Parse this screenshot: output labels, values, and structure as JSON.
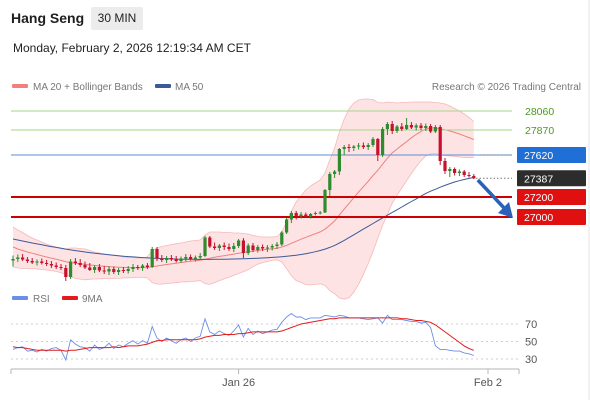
{
  "header": {
    "title": "Hang Seng",
    "timeframe": "30 MIN",
    "datetime": "Monday, February 2, 2026 12:19:34 AM CET"
  },
  "chart_data": {
    "type": "candlestick",
    "legend": [
      {
        "label": "MA 20 + Bollinger Bands",
        "color": "#f08080"
      },
      {
        "label": "MA 50",
        "color": "#3c5a9a"
      }
    ],
    "rsi_legend": [
      {
        "label": "RSI",
        "color": "#6b8ee8"
      },
      {
        "label": "9MA",
        "color": "#e21b1b"
      }
    ],
    "credit": "Research © 2026 Trading Central",
    "levels": [
      {
        "value": 28060,
        "label": "28060",
        "kind": "resistance",
        "color": "#4a9a1e",
        "line_color": "#a6d58a"
      },
      {
        "value": 27870,
        "label": "27870",
        "kind": "resistance",
        "color": "#4a9a1e",
        "line_color": "#a6d58a"
      },
      {
        "value": 27620,
        "label": "27620",
        "kind": "pivot",
        "color": "#1f6fd6",
        "line_color": "#5b8ed6"
      },
      {
        "value": 27387,
        "label": "27387",
        "kind": "last",
        "color": "#2c2c2c",
        "line_color": "#777777"
      },
      {
        "value": 27200,
        "label": "27200",
        "kind": "support",
        "color": "#e01010",
        "line_color": "#cc0000"
      },
      {
        "value": 27000,
        "label": "27000",
        "kind": "support",
        "color": "#e01010",
        "line_color": "#cc0000"
      }
    ],
    "price_range": [
      26300,
      28200
    ],
    "rsi_range": [
      20,
      80
    ],
    "rsi_ticks": [
      {
        "value": 70,
        "label": "70"
      },
      {
        "value": 50,
        "label": "50"
      },
      {
        "value": 30,
        "label": "30"
      }
    ],
    "x_labels": [
      {
        "index": 47,
        "label": "Jan 26"
      },
      {
        "index": 96,
        "label": "Feb 2"
      }
    ],
    "candles": [
      {
        "o": 26565,
        "h": 26615,
        "l": 26505,
        "c": 26580
      },
      {
        "o": 26580,
        "h": 26625,
        "l": 26550,
        "c": 26595
      },
      {
        "o": 26595,
        "h": 26630,
        "l": 26560,
        "c": 26575
      },
      {
        "o": 26575,
        "h": 26600,
        "l": 26540,
        "c": 26560
      },
      {
        "o": 26560,
        "h": 26590,
        "l": 26530,
        "c": 26545
      },
      {
        "o": 26545,
        "h": 26575,
        "l": 26515,
        "c": 26555
      },
      {
        "o": 26555,
        "h": 26585,
        "l": 26525,
        "c": 26540
      },
      {
        "o": 26540,
        "h": 26570,
        "l": 26510,
        "c": 26530
      },
      {
        "o": 26530,
        "h": 26560,
        "l": 26490,
        "c": 26515
      },
      {
        "o": 26515,
        "h": 26545,
        "l": 26480,
        "c": 26500
      },
      {
        "o": 26500,
        "h": 26530,
        "l": 26470,
        "c": 26490
      },
      {
        "o": 26490,
        "h": 26520,
        "l": 26360,
        "c": 26400
      },
      {
        "o": 26400,
        "h": 26580,
        "l": 26380,
        "c": 26555
      },
      {
        "o": 26555,
        "h": 26590,
        "l": 26520,
        "c": 26540
      },
      {
        "o": 26540,
        "h": 26580,
        "l": 26500,
        "c": 26520
      },
      {
        "o": 26520,
        "h": 26555,
        "l": 26480,
        "c": 26495
      },
      {
        "o": 26495,
        "h": 26540,
        "l": 26460,
        "c": 26470
      },
      {
        "o": 26470,
        "h": 26520,
        "l": 26440,
        "c": 26500
      },
      {
        "o": 26500,
        "h": 26530,
        "l": 26450,
        "c": 26465
      },
      {
        "o": 26465,
        "h": 26510,
        "l": 26430,
        "c": 26455
      },
      {
        "o": 26455,
        "h": 26510,
        "l": 26420,
        "c": 26480
      },
      {
        "o": 26480,
        "h": 26505,
        "l": 26430,
        "c": 26450
      },
      {
        "o": 26450,
        "h": 26490,
        "l": 26420,
        "c": 26470
      },
      {
        "o": 26470,
        "h": 26500,
        "l": 26440,
        "c": 26460
      },
      {
        "o": 26460,
        "h": 26510,
        "l": 26435,
        "c": 26480
      },
      {
        "o": 26480,
        "h": 26530,
        "l": 26450,
        "c": 26500
      },
      {
        "o": 26500,
        "h": 26520,
        "l": 26470,
        "c": 26490
      },
      {
        "o": 26490,
        "h": 26530,
        "l": 26460,
        "c": 26515
      },
      {
        "o": 26515,
        "h": 26540,
        "l": 26480,
        "c": 26500
      },
      {
        "o": 26500,
        "h": 26700,
        "l": 26490,
        "c": 26680
      },
      {
        "o": 26680,
        "h": 26700,
        "l": 26560,
        "c": 26585
      },
      {
        "o": 26585,
        "h": 26620,
        "l": 26550,
        "c": 26570
      },
      {
        "o": 26570,
        "h": 26610,
        "l": 26540,
        "c": 26590
      },
      {
        "o": 26590,
        "h": 26620,
        "l": 26560,
        "c": 26575
      },
      {
        "o": 26575,
        "h": 26610,
        "l": 26545,
        "c": 26560
      },
      {
        "o": 26560,
        "h": 26605,
        "l": 26540,
        "c": 26585
      },
      {
        "o": 26585,
        "h": 26630,
        "l": 26555,
        "c": 26600
      },
      {
        "o": 26600,
        "h": 26625,
        "l": 26565,
        "c": 26580
      },
      {
        "o": 26580,
        "h": 26615,
        "l": 26555,
        "c": 26595
      },
      {
        "o": 26595,
        "h": 26640,
        "l": 26570,
        "c": 26610
      },
      {
        "o": 26610,
        "h": 26810,
        "l": 26600,
        "c": 26795
      },
      {
        "o": 26795,
        "h": 26810,
        "l": 26690,
        "c": 26705
      },
      {
        "o": 26705,
        "h": 26745,
        "l": 26670,
        "c": 26690
      },
      {
        "o": 26690,
        "h": 26730,
        "l": 26660,
        "c": 26715
      },
      {
        "o": 26715,
        "h": 26745,
        "l": 26670,
        "c": 26700
      },
      {
        "o": 26700,
        "h": 26735,
        "l": 26660,
        "c": 26680
      },
      {
        "o": 26680,
        "h": 26740,
        "l": 26650,
        "c": 26710
      },
      {
        "o": 26710,
        "h": 26780,
        "l": 26690,
        "c": 26765
      },
      {
        "o": 26765,
        "h": 26790,
        "l": 26590,
        "c": 26640
      },
      {
        "o": 26640,
        "h": 26735,
        "l": 26620,
        "c": 26715
      },
      {
        "o": 26715,
        "h": 26740,
        "l": 26650,
        "c": 26670
      },
      {
        "o": 26670,
        "h": 26720,
        "l": 26645,
        "c": 26700
      },
      {
        "o": 26700,
        "h": 26725,
        "l": 26660,
        "c": 26685
      },
      {
        "o": 26685,
        "h": 26720,
        "l": 26650,
        "c": 26695
      },
      {
        "o": 26695,
        "h": 26730,
        "l": 26665,
        "c": 26710
      },
      {
        "o": 26710,
        "h": 26750,
        "l": 26680,
        "c": 26725
      },
      {
        "o": 26725,
        "h": 26860,
        "l": 26710,
        "c": 26845
      },
      {
        "o": 26845,
        "h": 26990,
        "l": 26830,
        "c": 26975
      },
      {
        "o": 26975,
        "h": 27060,
        "l": 26940,
        "c": 27040
      },
      {
        "o": 27040,
        "h": 27060,
        "l": 26975,
        "c": 27010
      },
      {
        "o": 27010,
        "h": 27050,
        "l": 26985,
        "c": 27025
      },
      {
        "o": 27025,
        "h": 27045,
        "l": 26990,
        "c": 27005
      },
      {
        "o": 27005,
        "h": 27040,
        "l": 26985,
        "c": 27030
      },
      {
        "o": 27030,
        "h": 27055,
        "l": 27015,
        "c": 27040
      },
      {
        "o": 27040,
        "h": 27060,
        "l": 27025,
        "c": 27045
      },
      {
        "o": 27045,
        "h": 27280,
        "l": 27040,
        "c": 27270
      },
      {
        "o": 27270,
        "h": 27450,
        "l": 27210,
        "c": 27430
      },
      {
        "o": 27430,
        "h": 27470,
        "l": 27390,
        "c": 27455
      },
      {
        "o": 27455,
        "h": 27690,
        "l": 27420,
        "c": 27680
      },
      {
        "o": 27680,
        "h": 27720,
        "l": 27620,
        "c": 27700
      },
      {
        "o": 27700,
        "h": 27730,
        "l": 27650,
        "c": 27690
      },
      {
        "o": 27690,
        "h": 27720,
        "l": 27660,
        "c": 27705
      },
      {
        "o": 27705,
        "h": 27740,
        "l": 27675,
        "c": 27715
      },
      {
        "o": 27715,
        "h": 27745,
        "l": 27680,
        "c": 27700
      },
      {
        "o": 27700,
        "h": 27740,
        "l": 27670,
        "c": 27720
      },
      {
        "o": 27720,
        "h": 27800,
        "l": 27700,
        "c": 27780
      },
      {
        "o": 27780,
        "h": 27790,
        "l": 27560,
        "c": 27620
      },
      {
        "o": 27620,
        "h": 27900,
        "l": 27600,
        "c": 27880
      },
      {
        "o": 27880,
        "h": 27950,
        "l": 27820,
        "c": 27930
      },
      {
        "o": 27930,
        "h": 27960,
        "l": 27830,
        "c": 27860
      },
      {
        "o": 27860,
        "h": 27920,
        "l": 27840,
        "c": 27905
      },
      {
        "o": 27905,
        "h": 27940,
        "l": 27860,
        "c": 27880
      },
      {
        "o": 27880,
        "h": 27990,
        "l": 27870,
        "c": 27920
      },
      {
        "o": 27920,
        "h": 27950,
        "l": 27880,
        "c": 27895
      },
      {
        "o": 27895,
        "h": 27935,
        "l": 27865,
        "c": 27915
      },
      {
        "o": 27915,
        "h": 27940,
        "l": 27870,
        "c": 27890
      },
      {
        "o": 27890,
        "h": 27935,
        "l": 27860,
        "c": 27910
      },
      {
        "o": 27910,
        "h": 27930,
        "l": 27840,
        "c": 27855
      },
      {
        "o": 27855,
        "h": 27920,
        "l": 27840,
        "c": 27900
      },
      {
        "o": 27900,
        "h": 27920,
        "l": 27520,
        "c": 27560
      },
      {
        "o": 27560,
        "h": 27590,
        "l": 27430,
        "c": 27460
      },
      {
        "o": 27460,
        "h": 27500,
        "l": 27400,
        "c": 27480
      },
      {
        "o": 27480,
        "h": 27495,
        "l": 27415,
        "c": 27440
      },
      {
        "o": 27440,
        "h": 27475,
        "l": 27410,
        "c": 27455
      },
      {
        "o": 27455,
        "h": 27470,
        "l": 27400,
        "c": 27420
      },
      {
        "o": 27420,
        "h": 27450,
        "l": 27395,
        "c": 27410
      },
      {
        "o": 27410,
        "h": 27430,
        "l": 27380,
        "c": 27387
      }
    ],
    "ma20": [
      26700,
      26680,
      26665,
      26650,
      26638,
      26625,
      26612,
      26600,
      26588,
      26578,
      26566,
      26553,
      26545,
      26538,
      26532,
      26526,
      26521,
      26515,
      26511,
      26507,
      26502,
      26500,
      26498,
      26496,
      26494,
      26494,
      26493,
      26493,
      26495,
      26504,
      26510,
      26517,
      26525,
      26531,
      26538,
      26545,
      26551,
      26557,
      26562,
      26567,
      26577,
      26588,
      26597,
      26606,
      26613,
      26621,
      26629,
      26638,
      26644,
      26652,
      26659,
      26666,
      26672,
      26678,
      26683,
      26688,
      26700,
      26716,
      26737,
      26757,
      26778,
      26797,
      26815,
      26833,
      26851,
      26878,
      26917,
      26961,
      27020,
      27079,
      27136,
      27193,
      27249,
      27303,
      27357,
      27415,
      27467,
      27528,
      27588,
      27641,
      27679,
      27717,
      27754,
      27792,
      27826,
      27856,
      27880,
      27891,
      27890,
      27882,
      27872,
      27860,
      27846,
      27830,
      27812,
      27794,
      27775
    ],
    "bb_upper": [
      26900,
      26870,
      26845,
      26815,
      26790,
      26770,
      26750,
      26730,
      26712,
      26700,
      26690,
      26680,
      26690,
      26690,
      26685,
      26680,
      26665,
      26650,
      26640,
      26630,
      26620,
      26615,
      26610,
      26600,
      26596,
      26594,
      26590,
      26590,
      26600,
      26665,
      26690,
      26705,
      26715,
      26723,
      26733,
      26740,
      26750,
      26760,
      26765,
      26770,
      26820,
      26850,
      26850,
      26850,
      26845,
      26845,
      26840,
      26840,
      26835,
      26830,
      26815,
      26805,
      26800,
      26800,
      26800,
      26805,
      26850,
      26950,
      27060,
      27150,
      27210,
      27270,
      27310,
      27340,
      27370,
      27440,
      27570,
      27690,
      27850,
      27980,
      28080,
      28140,
      28170,
      28180,
      28180,
      28175,
      28145,
      28140,
      28150,
      28145,
      28140,
      28145,
      28145,
      28150,
      28150,
      28150,
      28150,
      28150,
      28145,
      28140,
      28130,
      28110,
      28085,
      28060,
      28030,
      27995,
      27955
    ],
    "bb_lower": [
      26500,
      26490,
      26485,
      26485,
      26486,
      26480,
      26474,
      26470,
      26464,
      26456,
      26442,
      26426,
      26400,
      26386,
      26379,
      26372,
      26377,
      26380,
      26382,
      26384,
      26384,
      26385,
      26386,
      26392,
      26392,
      26394,
      26396,
      26396,
      26390,
      26343,
      26330,
      26329,
      26335,
      26339,
      26343,
      26350,
      26352,
      26354,
      26359,
      26364,
      26334,
      26326,
      26344,
      26362,
      26381,
      26397,
      26418,
      26436,
      26453,
      26474,
      26503,
      26527,
      26544,
      26556,
      26566,
      26571,
      26550,
      26482,
      26414,
      26364,
      26346,
      26324,
      26320,
      26326,
      26332,
      26316,
      26264,
      26232,
      26190,
      26178,
      26192,
      26246,
      26328,
      26426,
      26534,
      26655,
      26789,
      26916,
      27026,
      27137,
      27218,
      27289,
      27363,
      27434,
      27502,
      27562,
      27610,
      27632,
      27635,
      27624,
      27614,
      27610,
      27607,
      27600,
      27594,
      27593,
      27595
    ],
    "ma50": [
      26780,
      26770,
      26760,
      26750,
      26740,
      26731,
      26722,
      26713,
      26704,
      26696,
      26687,
      26679,
      26671,
      26664,
      26657,
      26650,
      26644,
      26638,
      26632,
      26627,
      26622,
      26617,
      26613,
      26608,
      26604,
      26601,
      26597,
      26594,
      26591,
      26589,
      26586,
      26584,
      26582,
      26581,
      26579,
      26578,
      26577,
      26577,
      26576,
      26576,
      26576,
      26576,
      26577,
      26577,
      26578,
      26579,
      26580,
      26581,
      26582,
      26584,
      26586,
      26588,
      26590,
      26593,
      26596,
      26599,
      26603,
      26607,
      26612,
      26618,
      26625,
      26633,
      26642,
      26653,
      26665,
      26679,
      26696,
      26716,
      26740,
      26766,
      26794,
      26822,
      26851,
      26879,
      26907,
      26935,
      26963,
      26990,
      27018,
      27046,
      27072,
      27100,
      27128,
      27155,
      27181,
      27209,
      27236,
      27258,
      27277,
      27298,
      27316,
      27334,
      27350,
      27363,
      27375,
      27386,
      27395
    ],
    "rsi": [
      41,
      43,
      44,
      39,
      40,
      38,
      41,
      39,
      42,
      43,
      40,
      29,
      52,
      47,
      44,
      43,
      39,
      46,
      41,
      43,
      48,
      42,
      46,
      44,
      48,
      51,
      47,
      51,
      48,
      67,
      54,
      50,
      54,
      51,
      48,
      52,
      54,
      50,
      54,
      56,
      76,
      61,
      58,
      62,
      59,
      57,
      62,
      69,
      55,
      65,
      58,
      62,
      59,
      61,
      63,
      64,
      72,
      78,
      82,
      78,
      78,
      75,
      77,
      77,
      77,
      80,
      79,
      78,
      80,
      79,
      77,
      77,
      77,
      76,
      75,
      76,
      77,
      71,
      80,
      75,
      75,
      75,
      74,
      73,
      73,
      71,
      72,
      66,
      45,
      41,
      41,
      40,
      39,
      39,
      37,
      36,
      34
    ],
    "rsi_ma": [
      44,
      43,
      43,
      42,
      41,
      40,
      40,
      40,
      40,
      40,
      40,
      39,
      40,
      40,
      41,
      42,
      43,
      43,
      43,
      43,
      43,
      44,
      43,
      44,
      45,
      45,
      45,
      46,
      47,
      49,
      51,
      51,
      52,
      52,
      52,
      52,
      52,
      52,
      52,
      53,
      55,
      56,
      57,
      57,
      58,
      58,
      58,
      59,
      59,
      60,
      61,
      61,
      61,
      61,
      61,
      61,
      62,
      64,
      66,
      68,
      70,
      71,
      72,
      73,
      74,
      75,
      76,
      76,
      77,
      77,
      77,
      77,
      77,
      77,
      77,
      77,
      77,
      77,
      77,
      77,
      77,
      76,
      76,
      75,
      74,
      74,
      73,
      72,
      69,
      65,
      61,
      57,
      53,
      49,
      45,
      42,
      40
    ]
  },
  "axes": {
    "x_axis_title": "",
    "y_axis_title": ""
  }
}
